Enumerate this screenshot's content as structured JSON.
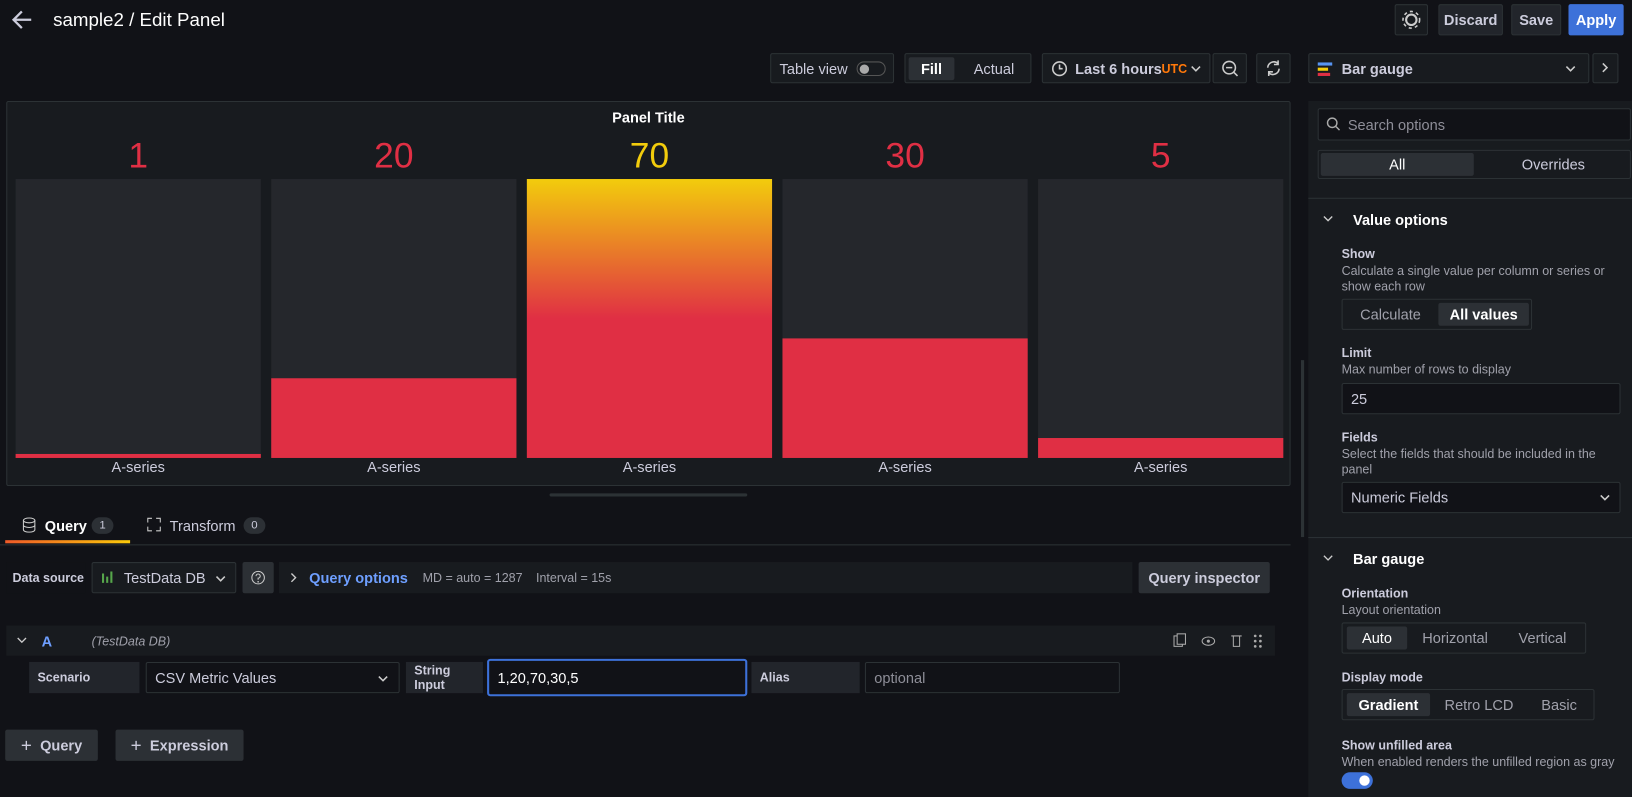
{
  "header": {
    "title": "sample2 / Edit Panel",
    "discard": "Discard",
    "save": "Save",
    "apply": "Apply"
  },
  "toolbar": {
    "table_view": "Table view",
    "fill": "Fill",
    "actual": "Actual",
    "time_range": "Last 6 hours",
    "timezone": "UTC",
    "visualization": "Bar gauge"
  },
  "panel": {
    "title": "Panel Title",
    "values": [
      1,
      20,
      70,
      30,
      5
    ],
    "labels": [
      "A-series",
      "A-series",
      "A-series",
      "A-series",
      "A-series"
    ],
    "value_colors": [
      "#e02f44",
      "#e02f44",
      "#f2cc0c",
      "#e02f44",
      "#e02f44"
    ],
    "bar_color": "#e02f44",
    "unfilled_color": "#25272c"
  },
  "tabs": {
    "query": "Query",
    "query_count": 1,
    "transform": "Transform",
    "transform_count": 0
  },
  "query_bar": {
    "data_source_label": "Data source",
    "data_source": "TestData DB",
    "query_options": "Query options",
    "md": "MD = auto = 1287",
    "interval": "Interval = 15s",
    "inspector": "Query inspector"
  },
  "query_a": {
    "ref": "A",
    "source": "(TestData DB)",
    "scenario_label": "Scenario",
    "scenario": "CSV Metric Values",
    "string_input_label": "String Input",
    "string_input": "1,20,70,30,5",
    "alias_label": "Alias",
    "alias_placeholder": "optional"
  },
  "add_buttons": {
    "query": "Query",
    "expression": "Expression"
  },
  "options": {
    "search_placeholder": "Search options",
    "all": "All",
    "overrides": "Overrides",
    "value_options": {
      "title": "Value options",
      "show_label": "Show",
      "show_desc": "Calculate a single value per column or series or show each row",
      "show_options": [
        "Calculate",
        "All values"
      ],
      "limit_label": "Limit",
      "limit_desc": "Max number of rows to display",
      "limit": "25",
      "fields_label": "Fields",
      "fields_desc": "Select the fields that should be included in the panel",
      "fields": "Numeric Fields"
    },
    "bar_gauge": {
      "title": "Bar gauge",
      "orientation_label": "Orientation",
      "orientation_desc": "Layout orientation",
      "orientation_options": [
        "Auto",
        "Horizontal",
        "Vertical"
      ],
      "display_label": "Display mode",
      "display_options": [
        "Gradient",
        "Retro LCD",
        "Basic"
      ],
      "unfilled_label": "Show unfilled area",
      "unfilled_desc": "When enabled renders the unfilled region as gray"
    }
  }
}
